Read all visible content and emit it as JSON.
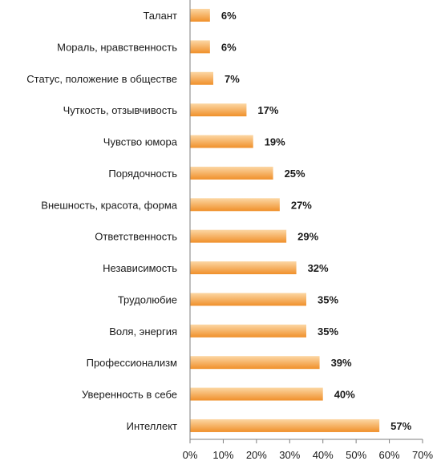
{
  "chart_data": {
    "type": "bar",
    "orientation": "horizontal",
    "categories": [
      "Талант",
      "Мораль, нравственность",
      "Статус, положение в обществе",
      "Чуткость, отзывчивость",
      "Чувство юмора",
      "Порядочность",
      "Внешность, красота, форма",
      "Ответственность",
      "Независимость",
      "Трудолюбие",
      "Воля, энергия",
      "Профессионализм",
      "Уверенность в себе",
      "Интеллект"
    ],
    "values": [
      6,
      6,
      7,
      17,
      19,
      25,
      27,
      29,
      32,
      35,
      35,
      39,
      40,
      57
    ],
    "value_labels": [
      "6%",
      "6%",
      "7%",
      "17%",
      "19%",
      "25%",
      "27%",
      "29%",
      "32%",
      "35%",
      "35%",
      "39%",
      "40%",
      "57%"
    ],
    "xlim": [
      0,
      70
    ],
    "x_ticks": [
      0,
      10,
      20,
      30,
      40,
      50,
      60,
      70
    ],
    "x_tick_labels": [
      "0%",
      "10%",
      "20%",
      "30%",
      "40%",
      "50%",
      "60%",
      "70%"
    ],
    "grid": false,
    "legend": "none",
    "colors": {
      "bar_light": "#fcd7a4",
      "bar_dark": "#f0902a",
      "axis": "#7f7f7f",
      "text": "#1a1a1a"
    }
  }
}
